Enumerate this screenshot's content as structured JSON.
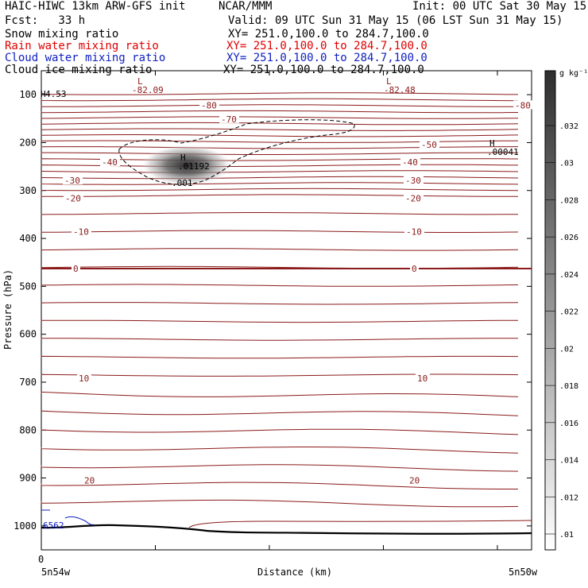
{
  "header": {
    "left": "HAIC-HIWC 13km ARW-GFS init",
    "center": "NCAR/MMM",
    "init": "Init: 00 UTC Sat 30 May 15",
    "fcst": "Fcst:   33 h",
    "valid": "Valid: 09 UTC Sun 31 May 15 (06 LST Sun 31 May 15)"
  },
  "fields": [
    {
      "name": "Snow mixing ratio",
      "xy": "XY= 251.0,100.0 to 284.7,100.0",
      "color": "#000000"
    },
    {
      "name": "Rain water mixing ratio",
      "xy": "XY= 251.0,100.0 to 284.7,100.0",
      "color": "#e00000"
    },
    {
      "name": "Cloud water mixing ratio",
      "xy": "XY= 251.0,100.0 to 284.7,100.0",
      "color": "#1020c0"
    },
    {
      "name": "Cloud ice mixing ratio",
      "xy": "XY= 251.0,100.0 to 284.7,100.0",
      "color": "#000000"
    }
  ],
  "chart_data": {
    "type": "cross-section",
    "ylabel": "Pressure (hPa)",
    "xlabel": "Distance (km)",
    "x_start_label": "0",
    "x_left_label": "5n54w",
    "x_right_label": "5n50w",
    "y_ticks": [
      100,
      200,
      300,
      400,
      500,
      600,
      700,
      800,
      900,
      1000
    ],
    "ylim": [
      1050,
      50
    ],
    "colorbar": {
      "unit": "g kg⁻¹",
      "ticks": [
        ".01",
        ".012",
        ".014",
        ".016",
        ".018",
        ".02",
        ".022",
        ".024",
        ".026",
        ".028",
        ".03",
        ".032"
      ]
    },
    "temperature_contours": [
      {
        "label": "-80",
        "p": 122
      },
      {
        "label": "-70",
        "p": 151
      },
      {
        "label": "-50",
        "p": 204
      },
      {
        "label": "-40",
        "p": 241
      },
      {
        "label": "-30",
        "p": 279
      },
      {
        "label": "-20",
        "p": 316
      },
      {
        "label": "-10",
        "p": 386
      },
      {
        "label": "0",
        "p": 463
      },
      {
        "label": "10",
        "p": 692
      },
      {
        "label": "20",
        "p": 905
      }
    ],
    "extrema": [
      {
        "type": "L",
        "value": "-82.09"
      },
      {
        "type": "L",
        "value": "-82.48"
      },
      {
        "type": "H",
        "value": "4.53"
      },
      {
        "type": "H",
        "value": ".00041"
      },
      {
        "type": "H",
        "value": ".01192"
      },
      {
        "type": "",
        "value": ".001"
      },
      {
        "type": "",
        "value": "6562"
      }
    ]
  },
  "colors": {
    "contour": "#8b1a1a",
    "ground": "#000000",
    "cloud_water": "#1020c0"
  }
}
